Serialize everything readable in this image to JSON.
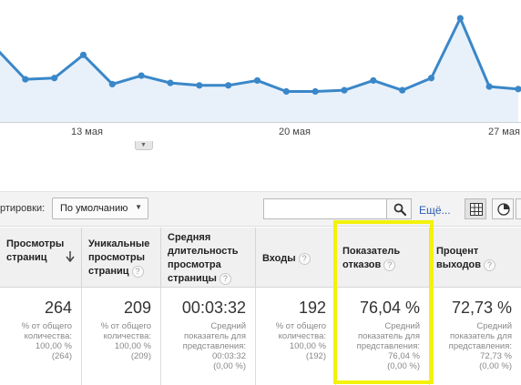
{
  "chart": {
    "series_color": "#3a87c8",
    "fill_color": "#e8f1fa",
    "x_tick_labels": [
      "13 мая",
      "20 мая",
      "27 мая"
    ],
    "values": [
      60,
      35,
      36,
      55,
      31,
      38,
      32,
      30,
      30,
      34,
      25,
      25,
      26,
      34,
      26,
      36,
      85,
      29,
      27
    ]
  },
  "chart_data": {
    "type": "area",
    "x": [
      "",
      "",
      "",
      "13 мая",
      "",
      "",
      "",
      "",
      "",
      "",
      "20 мая",
      "",
      "",
      "",
      "",
      "",
      "",
      "27 мая",
      ""
    ],
    "series": [
      {
        "values": [
          60,
          35,
          36,
          55,
          31,
          38,
          32,
          30,
          30,
          34,
          25,
          25,
          26,
          34,
          26,
          36,
          85,
          29,
          27
        ]
      }
    ],
    "xlabel": "",
    "ylabel": "",
    "grid": false
  },
  "toolbar": {
    "sort_label": "ртировки:",
    "sort_value": "По умолчанию",
    "search_value": "",
    "more_link": "Ещё..."
  },
  "columns": [
    {
      "name": "Просмотры страниц",
      "value": "264",
      "sub": "% от общего\nколичества:\n100,00 %\n(264)"
    },
    {
      "name": "Уникальные просмотры страниц",
      "value": "209",
      "sub": "% от общего\nколичества:\n100,00 %\n(209)"
    },
    {
      "name": "Средняя длительность просмотра страницы",
      "value": "00:03:32",
      "sub": "Средний\nпоказатель для\nпредставления:\n00:03:32\n(0,00 %)"
    },
    {
      "name": "Входы",
      "value": "192",
      "sub": "% от общего\nколичества:\n100,00 %\n(192)"
    },
    {
      "name": "Показатель отказов",
      "value": "76,04 %",
      "sub": "Средний\nпоказатель для\nпредставления:\n76,04 %\n(0,00 %)"
    },
    {
      "name": "Процент выходов",
      "value": "72,73 %",
      "sub": "Средний\nпоказатель для\nпредставления:\n72,73 %\n(0,00 %)"
    }
  ],
  "highlight_color": "#f3f20a"
}
